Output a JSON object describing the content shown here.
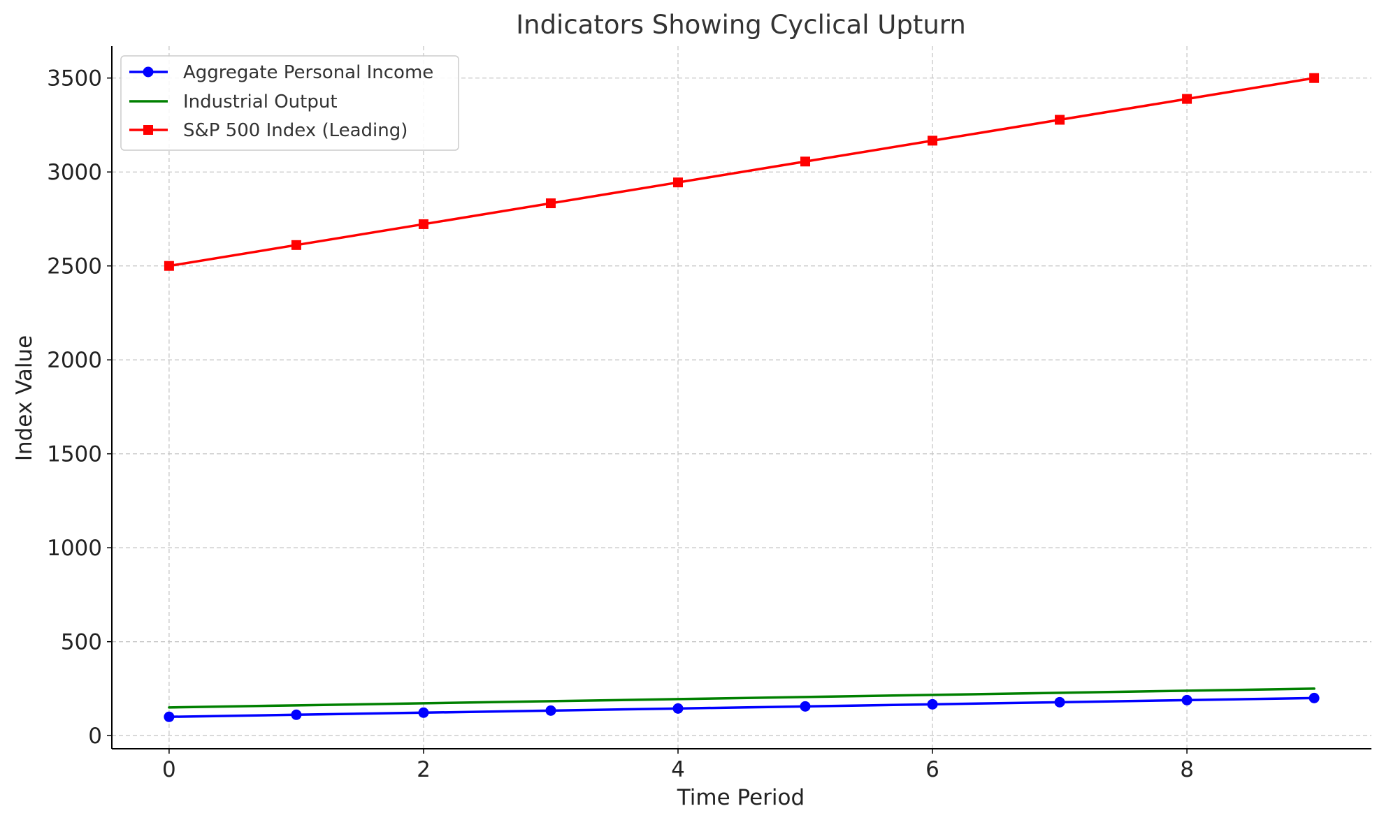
{
  "chart_data": {
    "type": "line",
    "title": "Indicators Showing Cyclical Upturn",
    "xlabel": "Time Period",
    "ylabel": "Index Value",
    "x": [
      0,
      1,
      2,
      3,
      4,
      5,
      6,
      7,
      8,
      9
    ],
    "xlim": [
      -0.45,
      9.45
    ],
    "ylim": [
      -70,
      3670
    ],
    "xticks": [
      0,
      2,
      4,
      6,
      8
    ],
    "yticks": [
      0,
      500,
      1000,
      1500,
      2000,
      2500,
      3000,
      3500
    ],
    "grid": true,
    "legend_position": "top-left",
    "series": [
      {
        "name": "Aggregate Personal Income",
        "color": "#0000ff",
        "marker": "circle",
        "values": [
          100,
          111.1,
          122.2,
          133.3,
          144.4,
          155.6,
          166.7,
          177.8,
          188.9,
          200
        ]
      },
      {
        "name": "Industrial Output",
        "color": "#008000",
        "marker": "none",
        "values": [
          150,
          161.1,
          172.2,
          183.3,
          194.4,
          205.6,
          216.7,
          227.8,
          238.9,
          250
        ]
      },
      {
        "name": "S&P 500 Index (Leading)",
        "color": "#ff0000",
        "marker": "square",
        "values": [
          2500,
          2611.1,
          2722.2,
          2833.3,
          2944.4,
          3055.6,
          3166.7,
          3277.8,
          3388.9,
          3500
        ]
      }
    ]
  }
}
